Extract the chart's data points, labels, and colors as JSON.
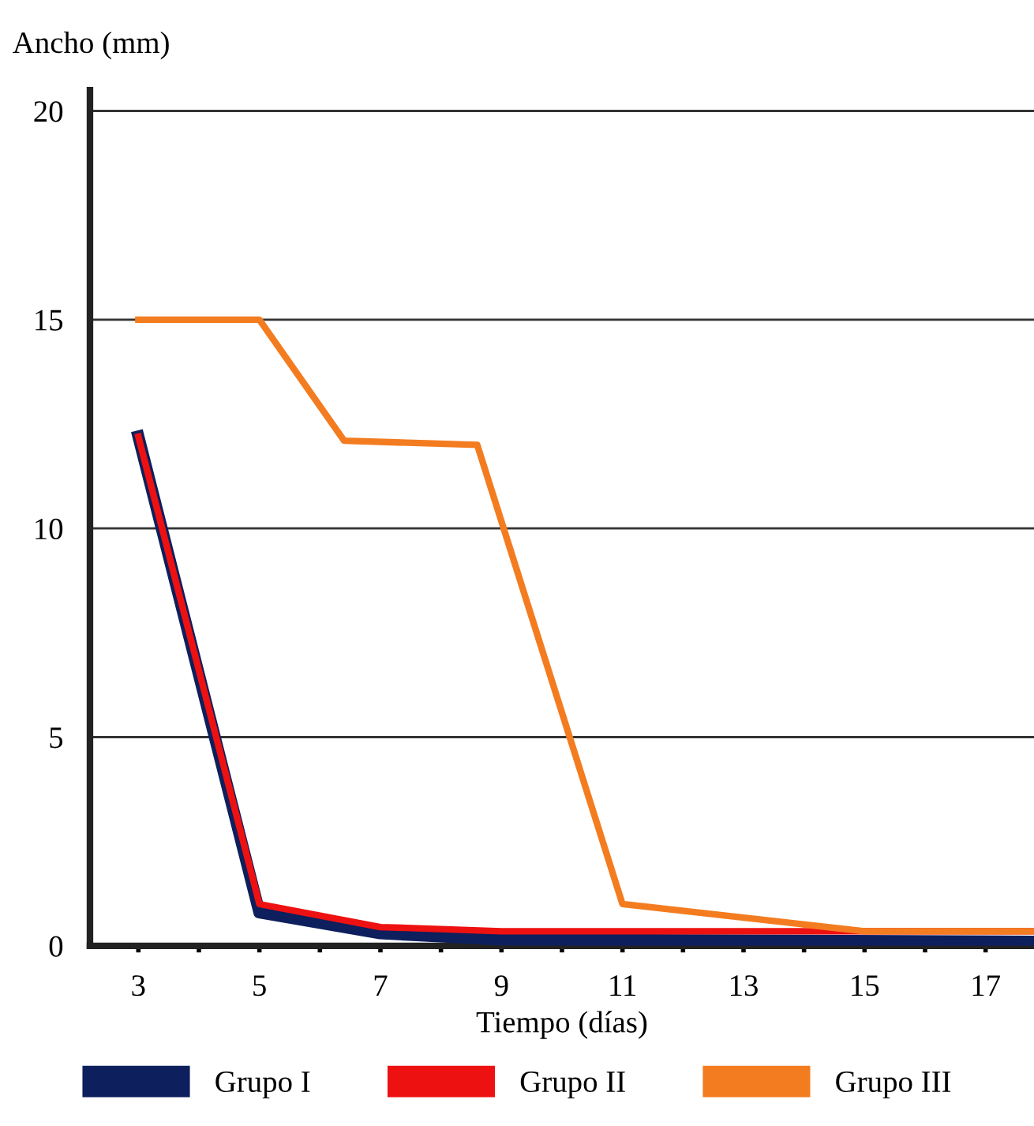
{
  "chart_data": {
    "type": "line",
    "xlabel": "Tiempo (días)",
    "ylabel": "Ancho (mm)",
    "xlim": [
      2.2,
      17.8
    ],
    "xticks": [
      3,
      {
        "value": 4,
        "label": null
      },
      5,
      {
        "value": 6,
        "label": null
      },
      7,
      {
        "value": 8,
        "label": null
      },
      9,
      {
        "value": 10,
        "label": null
      },
      11,
      {
        "value": 12,
        "label": null
      },
      13,
      {
        "value": 14,
        "label": null
      },
      15,
      {
        "value": 16,
        "label": null
      },
      17
    ],
    "ylim": [
      0,
      20.5
    ],
    "yticks": [
      0,
      5,
      10,
      15,
      20
    ],
    "grid": "y",
    "legend": "bottom",
    "marker": "none",
    "line_style": "solid",
    "series": [
      {
        "name": "Grupo I",
        "color": "#0d1f5c",
        "x": [
          3,
          5,
          7,
          9,
          17.8
        ],
        "values": [
          12.2,
          0.8,
          0.3,
          0.15,
          0.1
        ]
      },
      {
        "name": "Grupo II",
        "color": "#ee1111",
        "x": [
          3,
          5,
          7,
          9,
          17.8
        ],
        "values": [
          12.2,
          1.0,
          0.45,
          0.35,
          0.35
        ]
      },
      {
        "name": "Grupo III",
        "color": "#f47c20",
        "x": [
          3,
          5,
          6.4,
          8.6,
          11,
          15,
          17.8
        ],
        "values": [
          15,
          15,
          12.1,
          12,
          1.0,
          0.35,
          0.35
        ]
      }
    ]
  }
}
